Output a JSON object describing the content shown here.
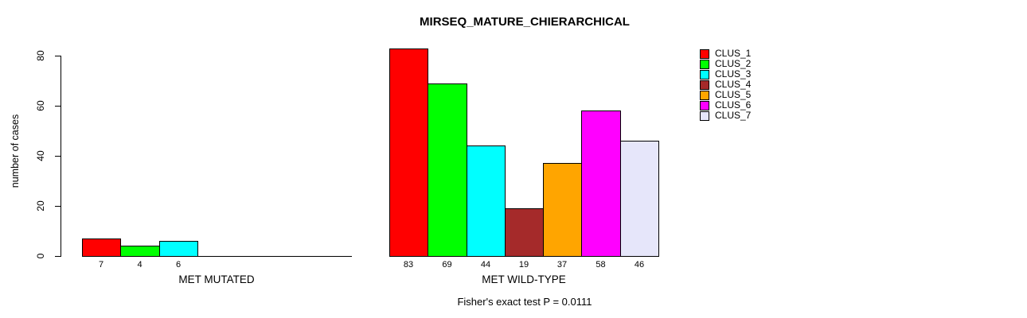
{
  "chart_data": {
    "type": "bar",
    "title": "MIRSEQ_MATURE_CHIERARCHICAL",
    "ylabel": "number of cases",
    "xlabel": "",
    "ylim": [
      0,
      80
    ],
    "yticks": [
      0,
      20,
      40,
      60,
      80
    ],
    "grid": false,
    "legend_position": "top-right",
    "bar_value_labels_shown": true,
    "zero_bars_hidden": true,
    "categories": [
      "MET MUTATED",
      "MET WILD-TYPE"
    ],
    "series": [
      {
        "name": "CLUS_1",
        "color": "#FF0000",
        "values": [
          7,
          83
        ]
      },
      {
        "name": "CLUS_2",
        "color": "#00FF00",
        "values": [
          4,
          69
        ]
      },
      {
        "name": "CLUS_3",
        "color": "#00FFFF",
        "values": [
          6,
          44
        ]
      },
      {
        "name": "CLUS_4",
        "color": "#A52A2A",
        "values": [
          0,
          19
        ]
      },
      {
        "name": "CLUS_5",
        "color": "#FFA500",
        "values": [
          0,
          37
        ]
      },
      {
        "name": "CLUS_6",
        "color": "#FF00FF",
        "values": [
          0,
          58
        ]
      },
      {
        "name": "CLUS_7",
        "color": "#E6E6FA",
        "values": [
          0,
          46
        ]
      }
    ],
    "footnote": "Fisher's exact test P = 0.0111",
    "colors": {
      "axis": "#000000",
      "background": "#FFFFFF",
      "text": "#000000"
    }
  }
}
